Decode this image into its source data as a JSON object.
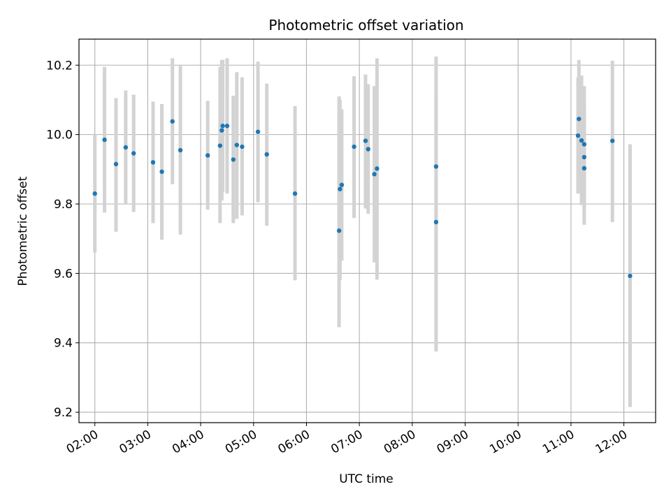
{
  "chart_data": {
    "type": "scatter",
    "title": "Photometric offset variation",
    "xlabel": "UTC time",
    "ylabel": "Photometric offset",
    "x_unit": "UTC time (HH:MM)",
    "xlim": [
      "01:42",
      "12:36"
    ],
    "ylim": [
      9.17,
      10.275
    ],
    "x_ticks": [
      "02:00",
      "03:00",
      "04:00",
      "05:00",
      "06:00",
      "07:00",
      "08:00",
      "09:00",
      "10:00",
      "11:00",
      "12:00"
    ],
    "y_ticks": [
      9.2,
      9.4,
      9.6,
      9.8,
      10.0,
      10.2
    ],
    "y_tick_labels": [
      "9.2",
      "9.4",
      "9.6",
      "9.8",
      "10.0",
      "10.2"
    ],
    "grid": true,
    "point_color": "#1f77b4",
    "errorbar_color": "#d3d3d3",
    "points": [
      {
        "x": "02:00",
        "y": 9.83,
        "lo": 9.66,
        "hi": 10.0
      },
      {
        "x": "02:11",
        "y": 9.985,
        "lo": 9.775,
        "hi": 10.195
      },
      {
        "x": "02:24",
        "y": 9.915,
        "lo": 9.72,
        "hi": 10.105
      },
      {
        "x": "02:35",
        "y": 9.963,
        "lo": 9.8,
        "hi": 10.127
      },
      {
        "x": "02:44",
        "y": 9.946,
        "lo": 9.777,
        "hi": 10.115
      },
      {
        "x": "03:06",
        "y": 9.92,
        "lo": 9.745,
        "hi": 10.095
      },
      {
        "x": "03:16",
        "y": 9.893,
        "lo": 9.697,
        "hi": 10.088
      },
      {
        "x": "03:28",
        "y": 10.038,
        "lo": 9.857,
        "hi": 10.22
      },
      {
        "x": "03:37",
        "y": 9.955,
        "lo": 9.712,
        "hi": 10.198
      },
      {
        "x": "04:08",
        "y": 9.94,
        "lo": 9.784,
        "hi": 10.097
      },
      {
        "x": "04:22",
        "y": 9.968,
        "lo": 9.745,
        "hi": 10.195
      },
      {
        "x": "04:24",
        "y": 10.012,
        "lo": 9.81,
        "hi": 10.215
      },
      {
        "x": "04:25",
        "y": 10.025,
        "lo": 9.835,
        "hi": 10.215
      },
      {
        "x": "04:30",
        "y": 10.025,
        "lo": 9.83,
        "hi": 10.22
      },
      {
        "x": "04:37",
        "y": 9.928,
        "lo": 9.745,
        "hi": 10.112
      },
      {
        "x": "04:41",
        "y": 9.97,
        "lo": 9.757,
        "hi": 10.18
      },
      {
        "x": "04:47",
        "y": 9.965,
        "lo": 9.767,
        "hi": 10.165
      },
      {
        "x": "05:05",
        "y": 10.008,
        "lo": 9.805,
        "hi": 10.21
      },
      {
        "x": "05:15",
        "y": 9.943,
        "lo": 9.737,
        "hi": 10.147
      },
      {
        "x": "05:47",
        "y": 9.83,
        "lo": 9.58,
        "hi": 10.082
      },
      {
        "x": "06:37",
        "y": 9.723,
        "lo": 9.445,
        "hi": 10.11
      },
      {
        "x": "06:38",
        "y": 9.843,
        "lo": 9.58,
        "hi": 10.1
      },
      {
        "x": "06:40",
        "y": 9.855,
        "lo": 9.637,
        "hi": 10.073
      },
      {
        "x": "06:54",
        "y": 9.965,
        "lo": 9.76,
        "hi": 10.168
      },
      {
        "x": "07:07",
        "y": 9.982,
        "lo": 9.787,
        "hi": 10.173
      },
      {
        "x": "07:10",
        "y": 9.958,
        "lo": 9.772,
        "hi": 10.145
      },
      {
        "x": "07:17",
        "y": 9.886,
        "lo": 9.632,
        "hi": 10.14
      },
      {
        "x": "07:20",
        "y": 9.902,
        "lo": 9.582,
        "hi": 10.22
      },
      {
        "x": "08:27",
        "y": 9.748,
        "lo": 9.375,
        "hi": 10.12
      },
      {
        "x": "08:27",
        "y": 9.908,
        "lo": 9.592,
        "hi": 10.225
      },
      {
        "x": "11:09",
        "y": 10.045,
        "lo": 9.875,
        "hi": 10.215
      },
      {
        "x": "11:08",
        "y": 9.997,
        "lo": 9.83,
        "hi": 10.165
      },
      {
        "x": "11:12",
        "y": 9.983,
        "lo": 9.797,
        "hi": 10.17
      },
      {
        "x": "11:15",
        "y": 9.972,
        "lo": 9.81,
        "hi": 10.14
      },
      {
        "x": "11:15",
        "y": 9.935,
        "lo": 9.78,
        "hi": 10.09
      },
      {
        "x": "11:15",
        "y": 9.903,
        "lo": 9.74,
        "hi": 10.07
      },
      {
        "x": "11:47",
        "y": 9.982,
        "lo": 9.748,
        "hi": 10.213
      },
      {
        "x": "12:07",
        "y": 9.593,
        "lo": 9.215,
        "hi": 9.972
      }
    ]
  }
}
